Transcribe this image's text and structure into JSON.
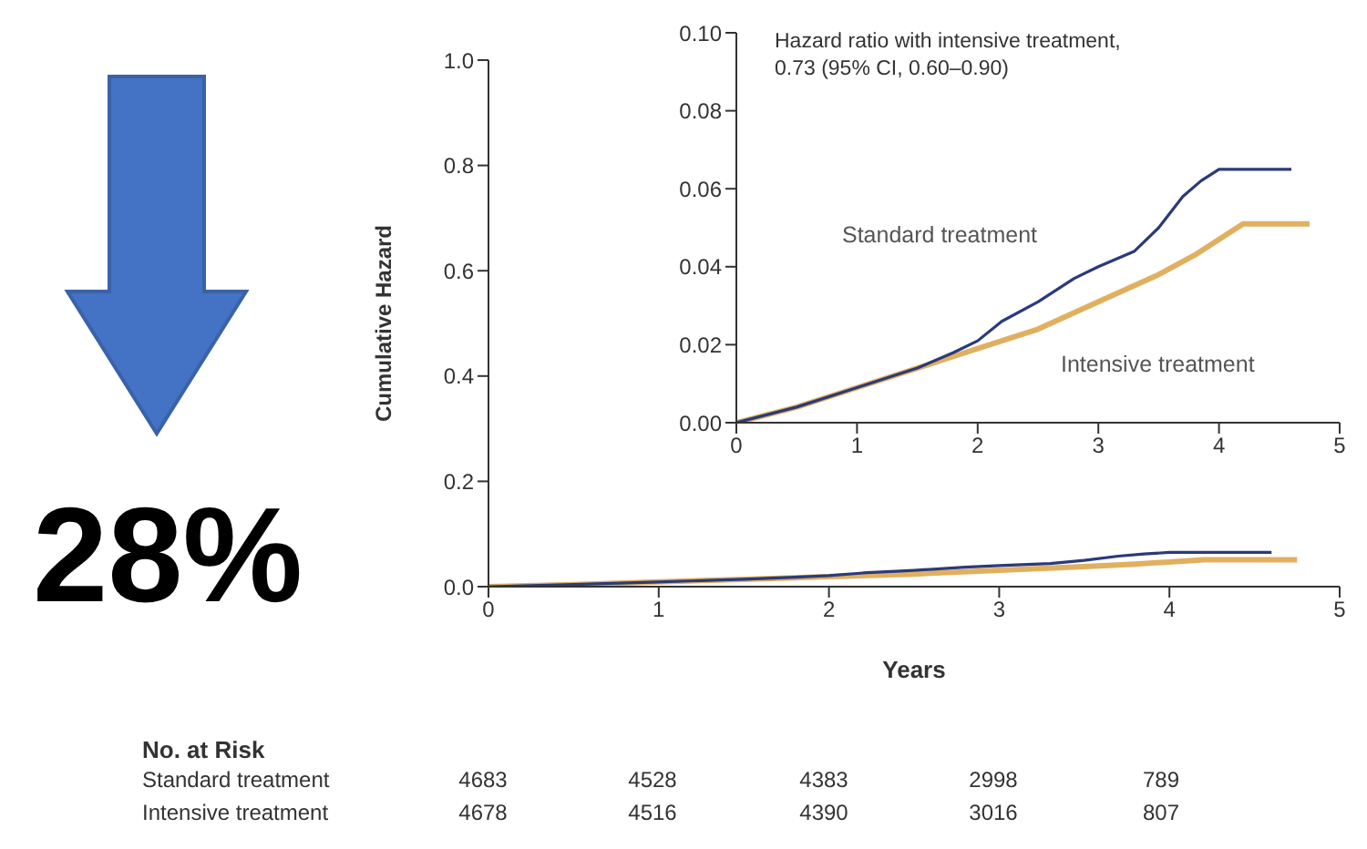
{
  "chart_data": [
    {
      "type": "line",
      "ylabel": "Cumulative Hazard",
      "xlabel": "Years",
      "xlim": [
        0,
        5
      ],
      "xticks": [
        0,
        1,
        2,
        3,
        4,
        5
      ],
      "ylim": [
        0,
        1
      ],
      "yticks": [
        {
          "value": 0,
          "label": "0.0"
        },
        {
          "value": 0.2,
          "label": "0.2"
        },
        {
          "value": 0.4,
          "label": "0.4"
        },
        {
          "value": 0.6,
          "label": "0.6"
        },
        {
          "value": 0.8,
          "label": "0.8"
        },
        {
          "value": 1,
          "label": "1.0"
        }
      ],
      "grid": false,
      "legend": false,
      "marker": "none",
      "series": [
        {
          "color": "#2b3a7a",
          "x": [
            0,
            0.5,
            1,
            1.5,
            1.8,
            2,
            2.2,
            2.5,
            2.8,
            3,
            3.3,
            3.5,
            3.7,
            3.85,
            4,
            4.6
          ],
          "values": [
            0,
            0.004,
            0.009,
            0.014,
            0.018,
            0.021,
            0.026,
            0.031,
            0.037,
            0.04,
            0.044,
            0.05,
            0.058,
            0.062,
            0.065,
            0.065
          ]
        },
        {
          "color": "#e0b060",
          "x": [
            0,
            0.5,
            1,
            1.5,
            1.8,
            2,
            2.5,
            3,
            3.5,
            3.8,
            4.1,
            4.2,
            4.75
          ],
          "values": [
            0,
            0.004,
            0.009,
            0.014,
            0.017,
            0.019,
            0.024,
            0.031,
            0.038,
            0.043,
            0.049,
            0.051,
            0.051
          ]
        }
      ],
      "annotations": [
        "28%",
        "No. at Risk",
        "Standard treatment",
        "4683",
        "4528",
        "4383",
        "2998",
        "789",
        "Intensive treatment",
        "4678",
        "4516",
        "4390",
        "3016",
        "807"
      ]
    },
    {
      "type": "line",
      "xlim": [
        0,
        5
      ],
      "xticks": [
        0,
        1,
        2,
        3,
        4,
        5
      ],
      "ylim": [
        0,
        0.1
      ],
      "yticks": [
        {
          "value": 0,
          "label": "0.00"
        },
        {
          "value": 0.02,
          "label": "0.02"
        },
        {
          "value": 0.04,
          "label": "0.04"
        },
        {
          "value": 0.06,
          "label": "0.06"
        },
        {
          "value": 0.08,
          "label": "0.08"
        },
        {
          "value": 0.1,
          "label": "0.10"
        }
      ],
      "grid": false,
      "legend": false,
      "marker": "none",
      "series": [
        {
          "name": "Standard treatment",
          "color": "#2b3a7a",
          "x": [
            0,
            0.5,
            1,
            1.5,
            1.8,
            2,
            2.2,
            2.5,
            2.8,
            3,
            3.3,
            3.5,
            3.7,
            3.85,
            4,
            4.6
          ],
          "values": [
            0,
            0.004,
            0.009,
            0.014,
            0.018,
            0.021,
            0.026,
            0.031,
            0.037,
            0.04,
            0.044,
            0.05,
            0.058,
            0.062,
            0.065,
            0.065
          ]
        },
        {
          "name": "Intensive treatment",
          "color": "#e0b060",
          "x": [
            0,
            0.5,
            1,
            1.5,
            1.8,
            2,
            2.5,
            3,
            3.5,
            3.8,
            4.1,
            4.2,
            4.75
          ],
          "values": [
            0,
            0.004,
            0.009,
            0.014,
            0.017,
            0.019,
            0.024,
            0.031,
            0.038,
            0.043,
            0.049,
            0.051,
            0.051
          ]
        }
      ],
      "annotations": [
        "Hazard ratio with intensive treatment,",
        "0.73 (95% CI, 0.60–0.90)"
      ]
    }
  ]
}
